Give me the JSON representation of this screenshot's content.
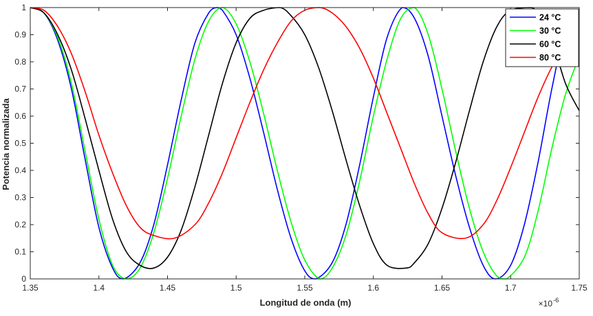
{
  "chart_data": {
    "type": "line",
    "title": "",
    "xlabel": "Longitud de onda (m)",
    "ylabel": "Potencia normalizada",
    "x_exponent_label": "×10",
    "x_exponent_power": "-6",
    "xlim": [
      1.35,
      1.75
    ],
    "ylim": [
      0,
      1
    ],
    "x_ticks": [
      "1.35",
      "1.4",
      "1.45",
      "1.5",
      "1.55",
      "1.6",
      "1.65",
      "1.7",
      "1.75"
    ],
    "y_ticks": [
      "0",
      "0.1",
      "0.2",
      "0.3",
      "0.4",
      "0.5",
      "0.6",
      "0.7",
      "0.8",
      "0.9",
      "1"
    ],
    "grid": false,
    "legend_position": "top-right",
    "series": [
      {
        "name": "24 °C",
        "color": "#0000ff",
        "x": [
          1.35,
          1.36,
          1.37,
          1.38,
          1.39,
          1.4,
          1.41,
          1.418,
          1.43,
          1.44,
          1.45,
          1.46,
          1.47,
          1.48,
          1.486,
          1.49,
          1.5,
          1.51,
          1.52,
          1.53,
          1.54,
          1.55,
          1.558,
          1.57,
          1.58,
          1.59,
          1.6,
          1.61,
          1.621,
          1.63,
          1.64,
          1.65,
          1.66,
          1.67,
          1.68,
          1.689,
          1.7,
          1.71,
          1.72,
          1.73,
          1.74,
          1.75
        ],
        "y": [
          1.0,
          0.98,
          0.88,
          0.7,
          0.44,
          0.19,
          0.04,
          0.0,
          0.06,
          0.2,
          0.42,
          0.66,
          0.87,
          0.98,
          1.0,
          0.99,
          0.9,
          0.74,
          0.54,
          0.33,
          0.15,
          0.03,
          0.0,
          0.06,
          0.2,
          0.42,
          0.67,
          0.89,
          1.0,
          0.96,
          0.82,
          0.6,
          0.38,
          0.19,
          0.05,
          0.0,
          0.05,
          0.2,
          0.43,
          0.7,
          0.92,
          0.99
        ]
      },
      {
        "name": "30 °C",
        "color": "#00ff00",
        "x": [
          1.35,
          1.36,
          1.37,
          1.38,
          1.39,
          1.4,
          1.41,
          1.42,
          1.43,
          1.44,
          1.45,
          1.46,
          1.47,
          1.48,
          1.49,
          1.5,
          1.51,
          1.52,
          1.53,
          1.54,
          1.55,
          1.561,
          1.57,
          1.58,
          1.59,
          1.6,
          1.61,
          1.62,
          1.63,
          1.64,
          1.65,
          1.66,
          1.67,
          1.68,
          1.69,
          1.697,
          1.71,
          1.72,
          1.73,
          1.74,
          1.75
        ],
        "y": [
          1.0,
          0.98,
          0.89,
          0.72,
          0.47,
          0.22,
          0.05,
          0.0,
          0.04,
          0.17,
          0.37,
          0.6,
          0.81,
          0.95,
          1.0,
          0.94,
          0.8,
          0.61,
          0.4,
          0.21,
          0.07,
          0.0,
          0.04,
          0.16,
          0.36,
          0.6,
          0.81,
          0.96,
          1.0,
          0.9,
          0.7,
          0.47,
          0.26,
          0.1,
          0.01,
          0.0,
          0.08,
          0.25,
          0.48,
          0.68,
          0.82
        ]
      },
      {
        "name": "60 °C",
        "color": "#000000",
        "x": [
          1.35,
          1.36,
          1.37,
          1.38,
          1.39,
          1.4,
          1.41,
          1.42,
          1.43,
          1.44,
          1.45,
          1.46,
          1.47,
          1.48,
          1.49,
          1.5,
          1.51,
          1.52,
          1.532,
          1.54,
          1.55,
          1.56,
          1.57,
          1.58,
          1.59,
          1.6,
          1.61,
          1.624,
          1.63,
          1.64,
          1.65,
          1.66,
          1.67,
          1.68,
          1.69,
          1.7,
          1.715,
          1.72,
          1.73,
          1.74,
          1.75
        ],
        "y": [
          1.0,
          0.98,
          0.9,
          0.77,
          0.59,
          0.4,
          0.22,
          0.1,
          0.05,
          0.04,
          0.08,
          0.18,
          0.34,
          0.53,
          0.72,
          0.87,
          0.96,
          0.99,
          1.0,
          0.97,
          0.9,
          0.78,
          0.62,
          0.44,
          0.27,
          0.13,
          0.05,
          0.04,
          0.06,
          0.13,
          0.26,
          0.43,
          0.62,
          0.8,
          0.93,
          0.99,
          1.0,
          0.97,
          0.88,
          0.72,
          0.62
        ]
      },
      {
        "name": "80 °C",
        "color": "#ff0000",
        "x": [
          1.35,
          1.36,
          1.37,
          1.38,
          1.39,
          1.4,
          1.41,
          1.42,
          1.43,
          1.44,
          1.455,
          1.47,
          1.48,
          1.49,
          1.5,
          1.51,
          1.52,
          1.53,
          1.54,
          1.55,
          1.561,
          1.57,
          1.58,
          1.59,
          1.6,
          1.61,
          1.62,
          1.63,
          1.64,
          1.65,
          1.667,
          1.68,
          1.69,
          1.7,
          1.71,
          1.72,
          1.73,
          1.74,
          1.75
        ],
        "y": [
          1.0,
          0.99,
          0.93,
          0.83,
          0.69,
          0.53,
          0.39,
          0.27,
          0.19,
          0.16,
          0.15,
          0.2,
          0.28,
          0.39,
          0.52,
          0.65,
          0.77,
          0.87,
          0.95,
          0.99,
          1.0,
          0.98,
          0.93,
          0.85,
          0.74,
          0.61,
          0.48,
          0.35,
          0.24,
          0.17,
          0.15,
          0.2,
          0.29,
          0.41,
          0.54,
          0.67,
          0.78,
          0.86,
          0.92
        ]
      }
    ]
  }
}
